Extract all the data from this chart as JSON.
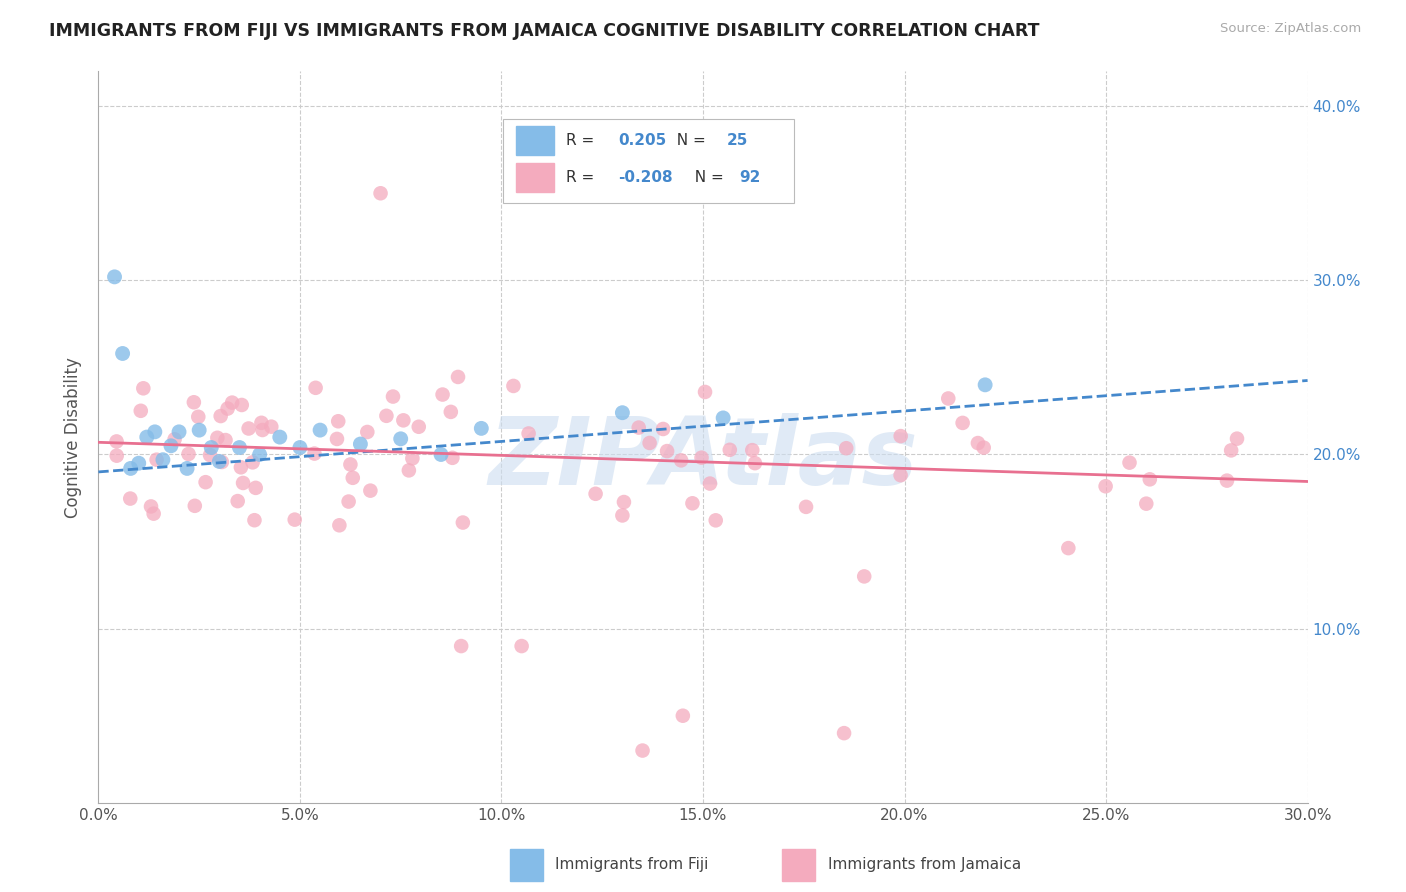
{
  "title": "IMMIGRANTS FROM FIJI VS IMMIGRANTS FROM JAMAICA COGNITIVE DISABILITY CORRELATION CHART",
  "source": "Source: ZipAtlas.com",
  "ylabel": "Cognitive Disability",
  "xlim": [
    0.0,
    0.3
  ],
  "ylim": [
    0.0,
    0.42
  ],
  "xticks": [
    0.0,
    0.05,
    0.1,
    0.15,
    0.2,
    0.25,
    0.3
  ],
  "xticklabels": [
    "0.0%",
    "5.0%",
    "10.0%",
    "15.0%",
    "20.0%",
    "25.0%",
    "30.0%"
  ],
  "yticks": [
    0.0,
    0.1,
    0.2,
    0.3,
    0.4
  ],
  "ytick_labels_right": [
    "",
    "10.0%",
    "20.0%",
    "30.0%",
    "40.0%"
  ],
  "fiji_R": "0.205",
  "fiji_N": "25",
  "jamaica_R": "-0.208",
  "jamaica_N": "92",
  "fiji_color": "#85bce8",
  "jamaica_color": "#f4abbe",
  "fiji_line_color": "#4488cc",
  "jamaica_line_color": "#e87090",
  "fiji_line_style": "--",
  "jamaica_line_style": "-",
  "watermark": "ZIPAtlas",
  "watermark_color": "#ccddf0",
  "right_tick_color": "#4488cc",
  "grid_color": "#cccccc",
  "background_color": "#ffffff",
  "fiji_line_y_intercept": 0.19,
  "fiji_line_slope": 0.175,
  "jamaica_line_y_intercept": 0.207,
  "jamaica_line_slope": -0.075
}
